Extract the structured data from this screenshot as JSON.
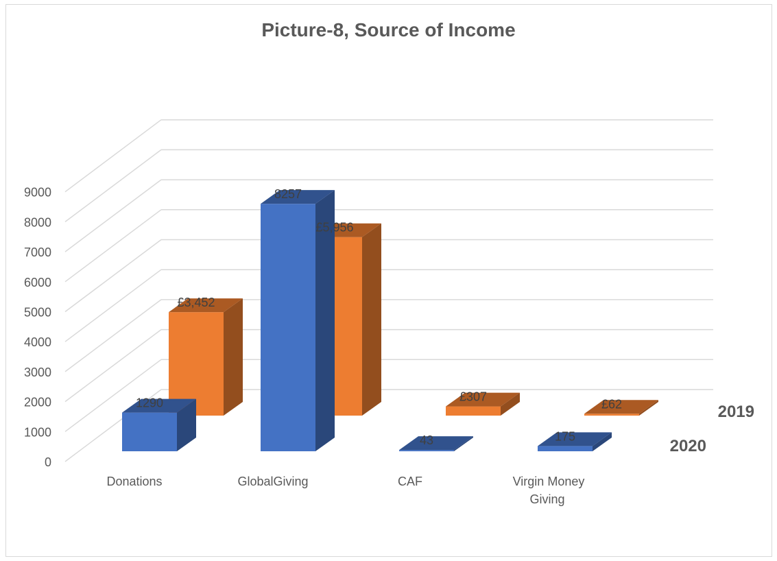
{
  "chart_data": {
    "type": "bar",
    "variant": "3d-column",
    "title": "Picture-8, Source of Income",
    "xlabel": "",
    "ylabel": "",
    "ylim": [
      0,
      9000
    ],
    "yticks": [
      "0",
      "1000",
      "2000",
      "3000",
      "4000",
      "5000",
      "6000",
      "7000",
      "8000",
      "9000"
    ],
    "categories": [
      "Donations",
      "GlobalGiving",
      "CAF",
      "Virgin Money Giving"
    ],
    "series": [
      {
        "name": "2020",
        "values": [
          1290,
          8257,
          43,
          175
        ],
        "labels": [
          "1290",
          "8257",
          "43",
          "175"
        ],
        "color": "#4472c4"
      },
      {
        "name": "2019",
        "values": [
          3452,
          5956,
          307,
          62
        ],
        "labels": [
          "£3,452",
          "£5,956",
          "£307",
          "£62"
        ],
        "color": "#ed7d31"
      }
    ],
    "grid": true,
    "legend": "none"
  }
}
